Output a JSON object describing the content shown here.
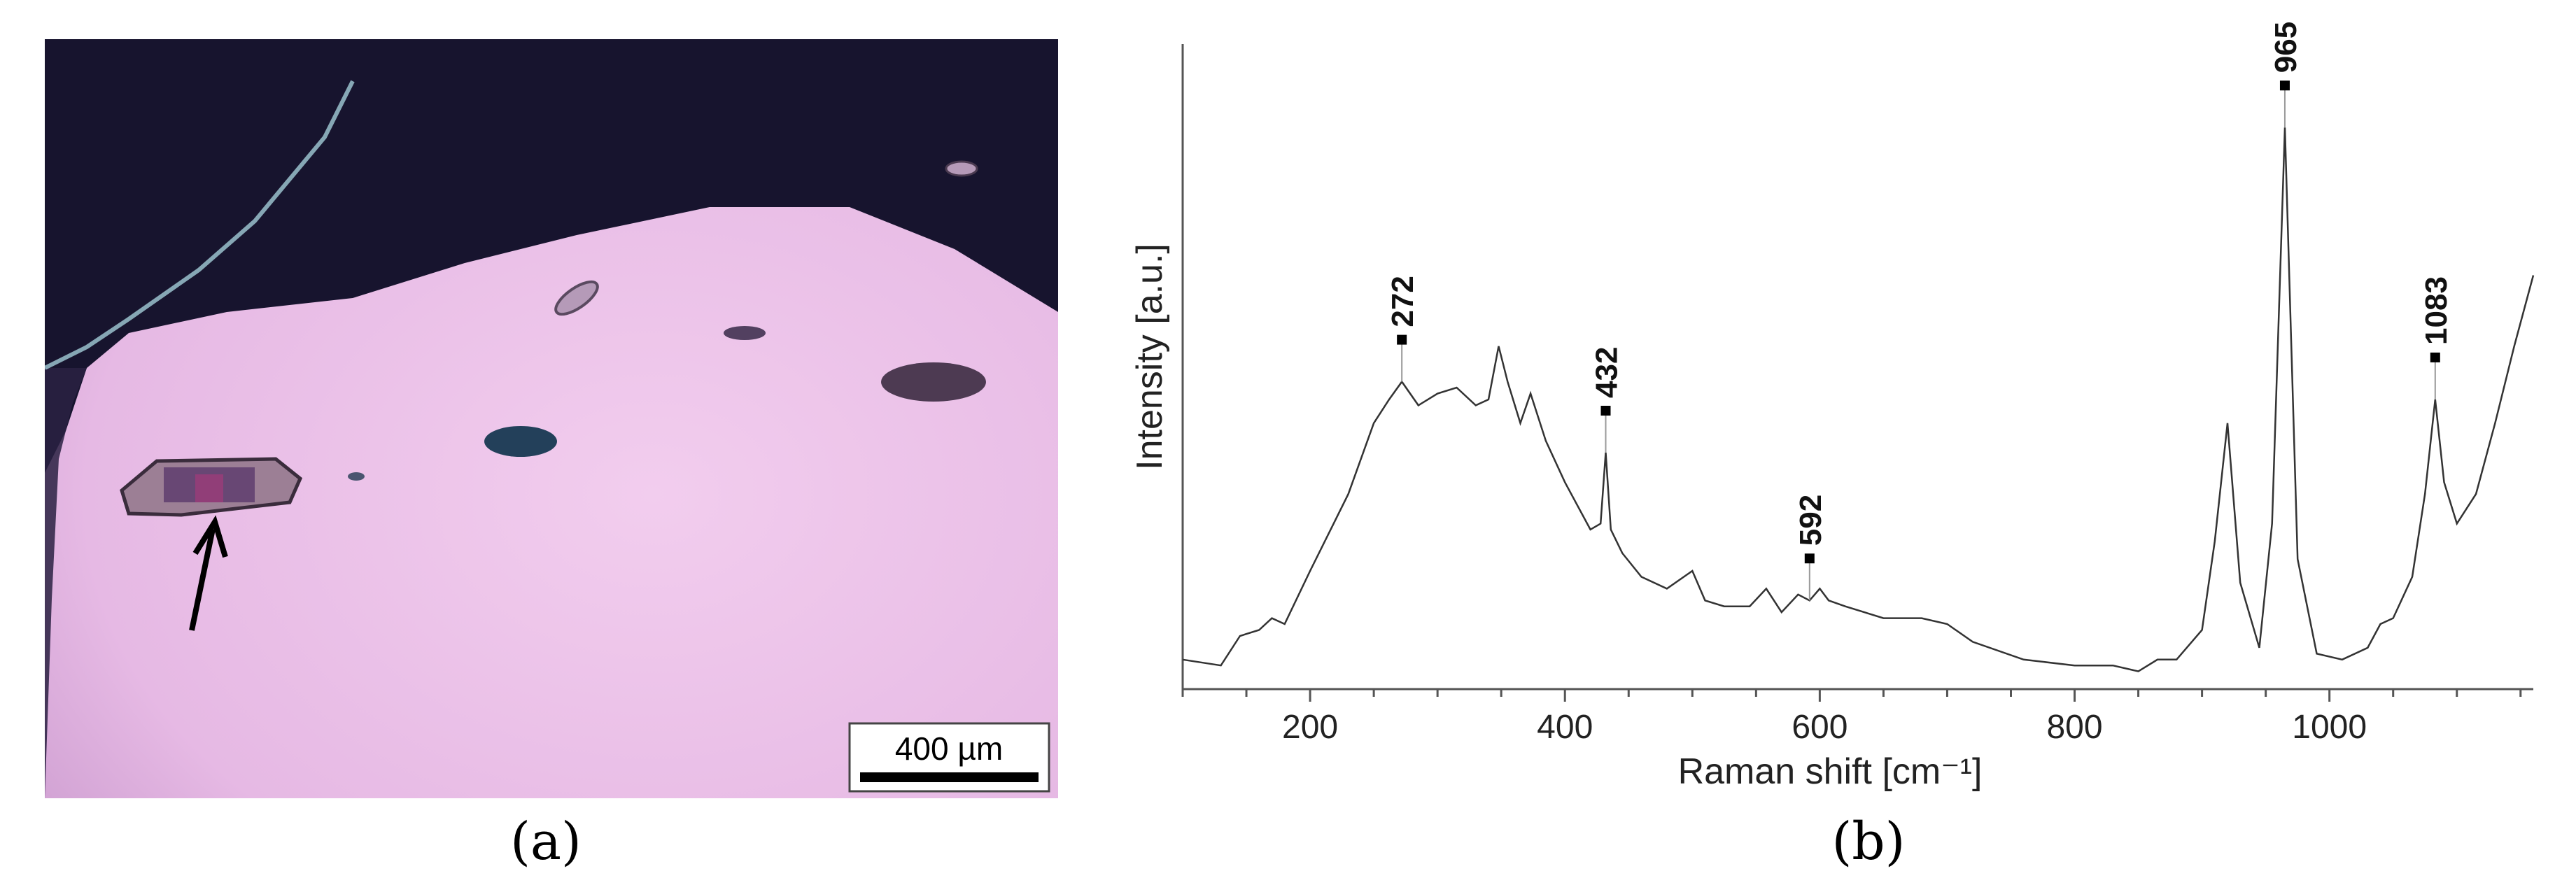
{
  "panel_a": {
    "caption": "(a)",
    "scale_bar_label": "400 µm",
    "colors": {
      "dark_grain": "#17142e",
      "mount": "#e9c0e6",
      "inclusion": "#6b4f7a"
    }
  },
  "panel_b": {
    "caption": "(b)"
  },
  "chart_data": {
    "type": "line",
    "title": "",
    "xlabel": "Raman shift [cm⁻¹]",
    "ylabel": "Intensity [a.u.]",
    "xlim": [
      100,
      1160
    ],
    "ylim": [
      0,
      1
    ],
    "y_ticks_shown": false,
    "x_ticks": [
      200,
      400,
      600,
      800,
      1000
    ],
    "grid": false,
    "line_color": "#333333",
    "series": [
      {
        "x": [
          100,
          130,
          145,
          160,
          170,
          180,
          200,
          230,
          250,
          262,
          272,
          285,
          300,
          315,
          330,
          340,
          348,
          355,
          365,
          373,
          385,
          400,
          420,
          428,
          432,
          436,
          445,
          460,
          480,
          500,
          510,
          525,
          545,
          558,
          570,
          583,
          592,
          600,
          607,
          620,
          650,
          680,
          700,
          720,
          760,
          800,
          830,
          850,
          865,
          880,
          900,
          910,
          920,
          930,
          945,
          955,
          965,
          975,
          990,
          1010,
          1030,
          1040,
          1050,
          1065,
          1075,
          1083,
          1090,
          1100,
          1115,
          1130,
          1145,
          1160
        ],
        "y": [
          0.05,
          0.04,
          0.09,
          0.1,
          0.12,
          0.11,
          0.2,
          0.33,
          0.45,
          0.49,
          0.52,
          0.48,
          0.5,
          0.51,
          0.48,
          0.49,
          0.58,
          0.52,
          0.45,
          0.5,
          0.42,
          0.35,
          0.27,
          0.28,
          0.4,
          0.27,
          0.23,
          0.19,
          0.17,
          0.2,
          0.15,
          0.14,
          0.14,
          0.17,
          0.13,
          0.16,
          0.15,
          0.17,
          0.15,
          0.14,
          0.12,
          0.12,
          0.11,
          0.08,
          0.05,
          0.04,
          0.04,
          0.03,
          0.05,
          0.05,
          0.1,
          0.25,
          0.45,
          0.18,
          0.07,
          0.28,
          0.95,
          0.22,
          0.06,
          0.05,
          0.07,
          0.11,
          0.12,
          0.19,
          0.33,
          0.49,
          0.35,
          0.28,
          0.33,
          0.45,
          0.58,
          0.7
        ]
      }
    ],
    "peak_labels": [
      {
        "x": 272,
        "y": 0.52,
        "label": "272"
      },
      {
        "x": 432,
        "y": 0.4,
        "label": "432"
      },
      {
        "x": 592,
        "y": 0.15,
        "label": "592"
      },
      {
        "x": 965,
        "y": 0.95,
        "label": "965"
      },
      {
        "x": 1083,
        "y": 0.49,
        "label": "1083"
      }
    ]
  }
}
